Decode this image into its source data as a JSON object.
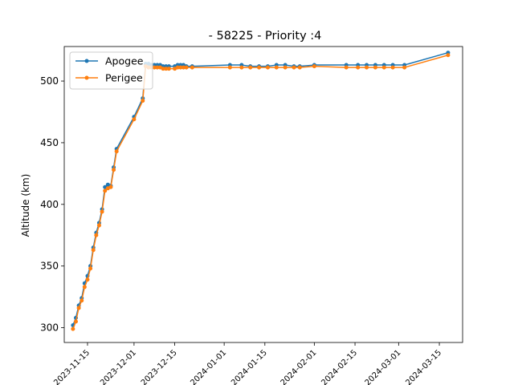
{
  "chart_data": {
    "type": "line",
    "title": "- 58225 - Priority :4",
    "xlabel": "",
    "ylabel": "Altitude (km)",
    "x_axis_type": "date",
    "xlim": [
      "2023-11-07",
      "2024-03-23"
    ],
    "ylim": [
      288,
      528
    ],
    "yticks": [
      300,
      350,
      400,
      450,
      500
    ],
    "xticks": [
      "2023-11-15",
      "2023-12-01",
      "2023-12-15",
      "2024-01-01",
      "2024-01-15",
      "2024-02-01",
      "2024-02-15",
      "2024-03-01",
      "2024-03-15"
    ],
    "xtick_labels": [
      "2023-11-15",
      "2023-12-01",
      "2023-12-15",
      "2024-01-01",
      "2024-01-15",
      "2024-02-01",
      "2024-02-15",
      "2024-03-01",
      "2024-03-15"
    ],
    "legend_position": "upper-left",
    "grid": false,
    "x": [
      "2023-11-10",
      "2023-11-11",
      "2023-11-12",
      "2023-11-13",
      "2023-11-14",
      "2023-11-15",
      "2023-11-16",
      "2023-11-17",
      "2023-11-18",
      "2023-11-19",
      "2023-11-20",
      "2023-11-21",
      "2023-11-22",
      "2023-11-23",
      "2023-11-24",
      "2023-11-25",
      "2023-12-01",
      "2023-12-04",
      "2023-12-05",
      "2023-12-06",
      "2023-12-07",
      "2023-12-08",
      "2023-12-09",
      "2023-12-10",
      "2023-12-11",
      "2023-12-12",
      "2023-12-13",
      "2023-12-15",
      "2023-12-16",
      "2023-12-17",
      "2023-12-18",
      "2023-12-19",
      "2023-12-21",
      "2024-01-03",
      "2024-01-07",
      "2024-01-10",
      "2024-01-13",
      "2024-01-16",
      "2024-01-19",
      "2024-01-22",
      "2024-01-25",
      "2024-01-27",
      "2024-02-01",
      "2024-02-12",
      "2024-02-16",
      "2024-02-19",
      "2024-02-22",
      "2024-02-25",
      "2024-02-28",
      "2024-03-03",
      "2024-03-18"
    ],
    "series": [
      {
        "name": "Apogee",
        "color": "#1f77b4",
        "values": [
          302,
          308,
          318,
          324,
          336,
          342,
          350,
          365,
          377,
          385,
          396,
          414,
          416,
          415,
          430,
          445,
          471,
          486,
          514,
          514,
          513,
          513,
          513,
          513,
          512,
          512,
          512,
          512,
          513,
          513,
          513,
          512,
          512,
          513,
          513,
          512,
          512,
          512,
          513,
          513,
          512,
          512,
          513,
          513,
          513,
          513,
          513,
          513,
          513,
          513,
          523
        ]
      },
      {
        "name": "Perigee",
        "color": "#ff7f0e",
        "values": [
          299,
          305,
          316,
          322,
          333,
          339,
          348,
          363,
          375,
          383,
          394,
          411,
          413,
          414,
          428,
          443,
          469,
          484,
          512,
          511,
          511,
          511,
          511,
          511,
          510,
          510,
          510,
          510,
          511,
          511,
          511,
          511,
          511,
          511,
          511,
          511,
          511,
          511,
          511,
          511,
          511,
          511,
          512,
          511,
          511,
          511,
          511,
          511,
          511,
          511,
          521
        ]
      }
    ]
  }
}
